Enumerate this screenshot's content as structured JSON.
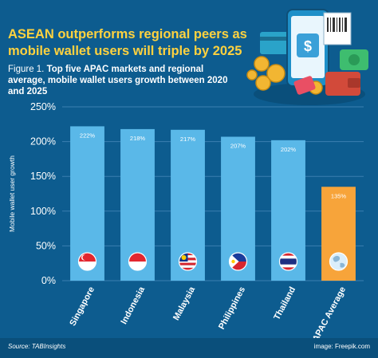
{
  "headline": "ASEAN outperforms regional peers as mobile wallet users will triple by 2025",
  "figure_label": "Figure 1.",
  "figure_caption": "Top five APAC markets and regional average, mobile wallet users growth between 2020 and 2025",
  "source": "Source: TABInsights",
  "image_credit": "image: Freepik.com",
  "illustration_symbol": "$",
  "colors": {
    "background": "#0d5c8f",
    "bar": "#5ab8e8",
    "highlight_bar": "#f7a43a",
    "headline": "#ffd23f",
    "gridline": "#3b7fb0"
  },
  "chart_data": {
    "type": "bar",
    "title": "",
    "xlabel": "",
    "ylabel": "Mobile wallet user growth",
    "categories": [
      "Singapore",
      "Indonesia",
      "Malaysia",
      "Philippines",
      "Thailand",
      "APAC Average"
    ],
    "values": [
      222,
      218,
      217,
      207,
      202,
      135
    ],
    "value_labels": [
      "222%",
      "218%",
      "217%",
      "207%",
      "202%",
      "135%"
    ],
    "highlight": "APAC Average",
    "icons": [
      "singapore-flag",
      "indonesia-flag",
      "malaysia-flag",
      "philippines-flag",
      "thailand-flag",
      "globe"
    ],
    "ylim": [
      0,
      250
    ],
    "yticks": [
      0,
      50,
      100,
      150,
      200,
      250
    ],
    "ytick_labels": [
      "0%",
      "50%",
      "100%",
      "150%",
      "200%",
      "250%"
    ],
    "grid": true
  }
}
